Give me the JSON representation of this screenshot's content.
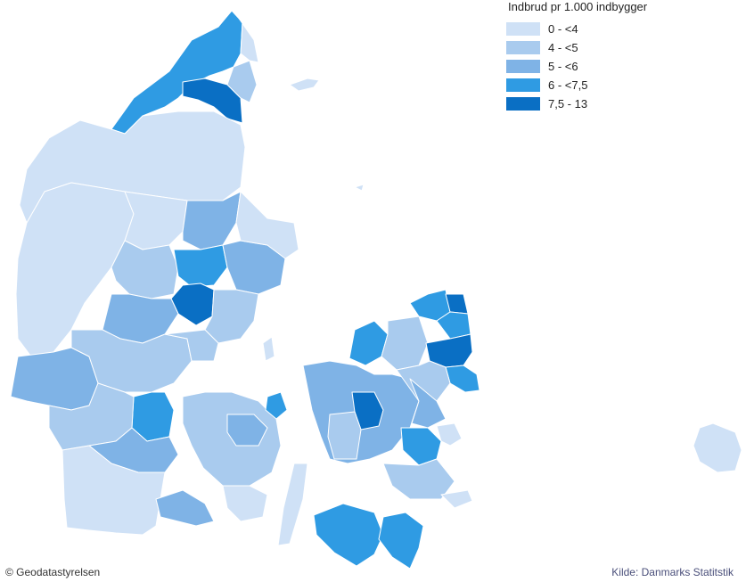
{
  "legend": {
    "title": "Indbrud pr 1.000 indbygger",
    "classes": [
      {
        "label": "0 - <4",
        "color": "#cfe1f6"
      },
      {
        "label": "4 - <5",
        "color": "#a9cbee"
      },
      {
        "label": "5 - <6",
        "color": "#7fb3e6"
      },
      {
        "label": "6 - <7,5",
        "color": "#2f9be3"
      },
      {
        "label": "7,5 - 13",
        "color": "#0a6fc4"
      }
    ]
  },
  "credits": {
    "source_left": "© Geodatastyrelsen",
    "source_right": "Kilde: Danmarks Statitstik"
  }
}
